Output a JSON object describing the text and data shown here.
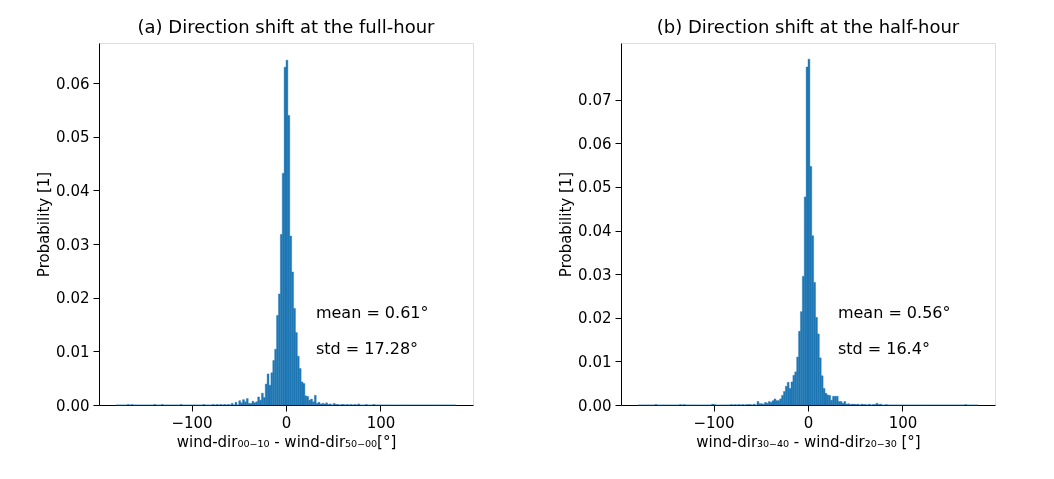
{
  "chart_data": [
    {
      "type": "histogram",
      "title": "(a) Direction shift at the full-hour",
      "xlabel": "wind-dir₀₀₋₁₀ - wind-dir₅₀₋₀₀[°]",
      "ylabel": "Probability [1]",
      "color": "#1f77b4",
      "bins": [
        -180,
        -178,
        -176,
        -174,
        -172,
        -170,
        -168,
        -166,
        -164,
        -162,
        -160,
        -158,
        -156,
        -154,
        -152,
        -150,
        -148,
        -146,
        -144,
        -142,
        -140,
        -138,
        -136,
        -134,
        -132,
        -130,
        -128,
        -126,
        -124,
        -122,
        -120,
        -118,
        -116,
        -114,
        -112,
        -110,
        -108,
        -106,
        -104,
        -102,
        -100,
        -98,
        -96,
        -94,
        -92,
        -90,
        -88,
        -86,
        -84,
        -82,
        -80,
        -78,
        -76,
        -74,
        -72,
        -70,
        -68,
        -66,
        -64,
        -62,
        -60,
        -58,
        -56,
        -54,
        -52,
        -50,
        -48,
        -46,
        -44,
        -42,
        -40,
        -38,
        -36,
        -34,
        -32,
        -30,
        -28,
        -26,
        -24,
        -22,
        -20,
        -18,
        -16,
        -14,
        -12,
        -10,
        -8,
        -6,
        -4,
        -2,
        0,
        2,
        4,
        6,
        8,
        10,
        12,
        14,
        16,
        18,
        20,
        22,
        24,
        26,
        28,
        30,
        32,
        34,
        36,
        38,
        40,
        42,
        44,
        46,
        48,
        50,
        52,
        54,
        56,
        58,
        60,
        62,
        64,
        66,
        68,
        70,
        72,
        74,
        76,
        78,
        80,
        82,
        84,
        86,
        88,
        90,
        92,
        94,
        96,
        98,
        100,
        102,
        104,
        106,
        108,
        110,
        112,
        114,
        116,
        118,
        120,
        122,
        124,
        126,
        128,
        130,
        132,
        134,
        136,
        138,
        140,
        142,
        144,
        146,
        148,
        150,
        152,
        154,
        156,
        158,
        160,
        162,
        164,
        166,
        168,
        170,
        172,
        174,
        176,
        178,
        180
      ],
      "values": [
        0,
        0,
        0,
        0,
        0,
        0,
        0.0001,
        0,
        0.0001,
        0,
        0,
        0,
        0,
        0,
        0,
        0,
        0,
        0,
        0,
        0,
        0.0001,
        0,
        0,
        0,
        0.0001,
        0,
        0,
        0,
        0,
        0,
        0,
        0,
        0,
        0,
        0.0001,
        0,
        0,
        0,
        0,
        0,
        0,
        0,
        0,
        0,
        0,
        0,
        0.0001,
        0,
        0,
        0,
        0,
        0.0001,
        0,
        0.0001,
        0,
        0.0001,
        0,
        0.0001,
        0,
        0.0001,
        0,
        0.0003,
        0,
        0.0005,
        0,
        0.0008,
        0.0004,
        0.001,
        0.0006,
        0.0012,
        0.0003,
        0.0003,
        0.0007,
        0.0004,
        0.0006,
        0.0015,
        0.0009,
        0.0022,
        0.0014,
        0.0039,
        0.0058,
        0.0037,
        0.006,
        0.0083,
        0.0104,
        0.0167,
        0.0207,
        0.0318,
        0.0432,
        0.063,
        0.0643,
        0.054,
        0.0315,
        0.0248,
        0.018,
        0.0135,
        0.0091,
        0.0068,
        0.0043,
        0.004,
        0.0017,
        0.0016,
        0.0009,
        0.0011,
        0.0006,
        0.0018,
        0.0003,
        0.0005,
        0.0002,
        0.0003,
        0.0002,
        0.0004,
        0.0001,
        0.0002,
        0,
        0.0003,
        0.0001,
        0.0001,
        0,
        0.0001,
        0.0001,
        0,
        0.0001,
        0,
        0.0001,
        0,
        0.0001,
        0,
        0.0002,
        0,
        0,
        0,
        0.0001,
        0,
        0,
        0,
        0.0001,
        0,
        0,
        0,
        0,
        0,
        0,
        0,
        0,
        0,
        0,
        0,
        0,
        0,
        0,
        0,
        0,
        0,
        0,
        0,
        0,
        0,
        0,
        0,
        0,
        0,
        0,
        0,
        0,
        0,
        0,
        0,
        0,
        0,
        0,
        0,
        0,
        0,
        0,
        0,
        0,
        0,
        0,
        0
      ],
      "xlim": [
        -198,
        198
      ],
      "ylim": [
        0,
        0.0675
      ],
      "xticks": [
        {
          "value": -100,
          "label": "−100"
        },
        0,
        100
      ],
      "yticks": [
        {
          "value": 0,
          "label": "0.00"
        },
        {
          "value": 0.01,
          "label": "0.01"
        },
        {
          "value": 0.02,
          "label": "0.02"
        },
        {
          "value": 0.03,
          "label": "0.03"
        },
        {
          "value": 0.04,
          "label": "0.04"
        },
        {
          "value": 0.05,
          "label": "0.05"
        },
        {
          "value": 0.06,
          "label": "0.06"
        }
      ],
      "annotations": [
        "mean = 0.61°",
        "std = 17.28°"
      ],
      "grid": false
    },
    {
      "type": "histogram",
      "title": "(b) Direction shift at the half-hour",
      "xlabel": "wind-dir₃₀₋₄₀ - wind-dir₂₀₋₃₀ [°]",
      "ylabel": "Probability [1]",
      "color": "#1f77b4",
      "bins": [
        -180,
        -178,
        -176,
        -174,
        -172,
        -170,
        -168,
        -166,
        -164,
        -162,
        -160,
        -158,
        -156,
        -154,
        -152,
        -150,
        -148,
        -146,
        -144,
        -142,
        -140,
        -138,
        -136,
        -134,
        -132,
        -130,
        -128,
        -126,
        -124,
        -122,
        -120,
        -118,
        -116,
        -114,
        -112,
        -110,
        -108,
        -106,
        -104,
        -102,
        -100,
        -98,
        -96,
        -94,
        -92,
        -90,
        -88,
        -86,
        -84,
        -82,
        -80,
        -78,
        -76,
        -74,
        -72,
        -70,
        -68,
        -66,
        -64,
        -62,
        -60,
        -58,
        -56,
        -54,
        -52,
        -50,
        -48,
        -46,
        -44,
        -42,
        -40,
        -38,
        -36,
        -34,
        -32,
        -30,
        -28,
        -26,
        -24,
        -22,
        -20,
        -18,
        -16,
        -14,
        -12,
        -10,
        -8,
        -6,
        -4,
        -2,
        0,
        2,
        4,
        6,
        8,
        10,
        12,
        14,
        16,
        18,
        20,
        22,
        24,
        26,
        28,
        30,
        32,
        34,
        36,
        38,
        40,
        42,
        44,
        46,
        48,
        50,
        52,
        54,
        56,
        58,
        60,
        62,
        64,
        66,
        68,
        70,
        72,
        74,
        76,
        78,
        80,
        82,
        84,
        86,
        88,
        90,
        92,
        94,
        96,
        98,
        100,
        102,
        104,
        106,
        108,
        110,
        112,
        114,
        116,
        118,
        120,
        122,
        124,
        126,
        128,
        130,
        132,
        134,
        136,
        138,
        140,
        142,
        144,
        146,
        148,
        150,
        152,
        154,
        156,
        158,
        160,
        162,
        164,
        166,
        168,
        170,
        172,
        174,
        176,
        178,
        180
      ],
      "values": [
        0,
        0,
        0,
        0,
        0,
        0,
        0,
        0,
        0,
        0.0001,
        0,
        0,
        0,
        0,
        0,
        0,
        0,
        0,
        0,
        0,
        0,
        0,
        0.0001,
        0,
        0.0001,
        0,
        0,
        0,
        0,
        0,
        0,
        0,
        0,
        0,
        0,
        0,
        0,
        0,
        0,
        0.0002,
        0.0001,
        0,
        0,
        0,
        0,
        0,
        0,
        0,
        0,
        0.0001,
        0,
        0.0001,
        0,
        0.0001,
        0,
        0.0001,
        0,
        0.0001,
        0.0001,
        0.0001,
        0,
        0.0002,
        0,
        0.0008,
        0.0003,
        0.0003,
        0.0002,
        0.0006,
        0.0004,
        0.0008,
        0.0006,
        0.001,
        0.0014,
        0.001,
        0.001,
        0.0014,
        0.0022,
        0.0031,
        0.0043,
        0.0052,
        0.0038,
        0.0053,
        0.0068,
        0.0076,
        0.011,
        0.0169,
        0.0214,
        0.0295,
        0.0477,
        0.0775,
        0.0793,
        0.0547,
        0.0388,
        0.0281,
        0.0201,
        0.0163,
        0.0108,
        0.0067,
        0.0038,
        0.0027,
        0.0023,
        0.0022,
        0.0011,
        0.002,
        0.002,
        0.002,
        0.0008,
        0.0008,
        0.0004,
        0.0008,
        0.0002,
        0.0003,
        0.0001,
        0.0002,
        0.0002,
        0.0001,
        0.0002,
        0,
        0.0002,
        0.0001,
        0.0001,
        0,
        0.0002,
        0,
        0.0001,
        0.0001,
        0.0004,
        0.0001,
        0.0002,
        0,
        0,
        0.0001,
        0,
        0,
        0,
        0,
        0,
        0,
        0,
        0,
        0,
        0,
        0,
        0,
        0,
        0,
        0,
        0,
        0,
        0,
        0,
        0,
        0,
        0,
        0,
        0,
        0,
        0,
        0,
        0,
        0,
        0,
        0,
        0,
        0,
        0,
        0,
        0,
        0,
        0,
        0,
        0,
        0,
        0.0001,
        0,
        0,
        0,
        0,
        0,
        0
      ],
      "xlim": [
        -198,
        198
      ],
      "ylim": [
        0,
        0.083
      ],
      "xticks": [
        {
          "value": -100,
          "label": "−100"
        },
        0,
        100
      ],
      "yticks": [
        {
          "value": 0,
          "label": "0.00"
        },
        {
          "value": 0.01,
          "label": "0.01"
        },
        {
          "value": 0.02,
          "label": "0.02"
        },
        {
          "value": 0.03,
          "label": "0.03"
        },
        {
          "value": 0.04,
          "label": "0.04"
        },
        {
          "value": 0.05,
          "label": "0.05"
        },
        {
          "value": 0.06,
          "label": "0.06"
        },
        {
          "value": 0.07,
          "label": "0.07"
        }
      ],
      "annotations": [
        "mean = 0.56°",
        "std = 16.4°"
      ],
      "grid": false
    }
  ]
}
